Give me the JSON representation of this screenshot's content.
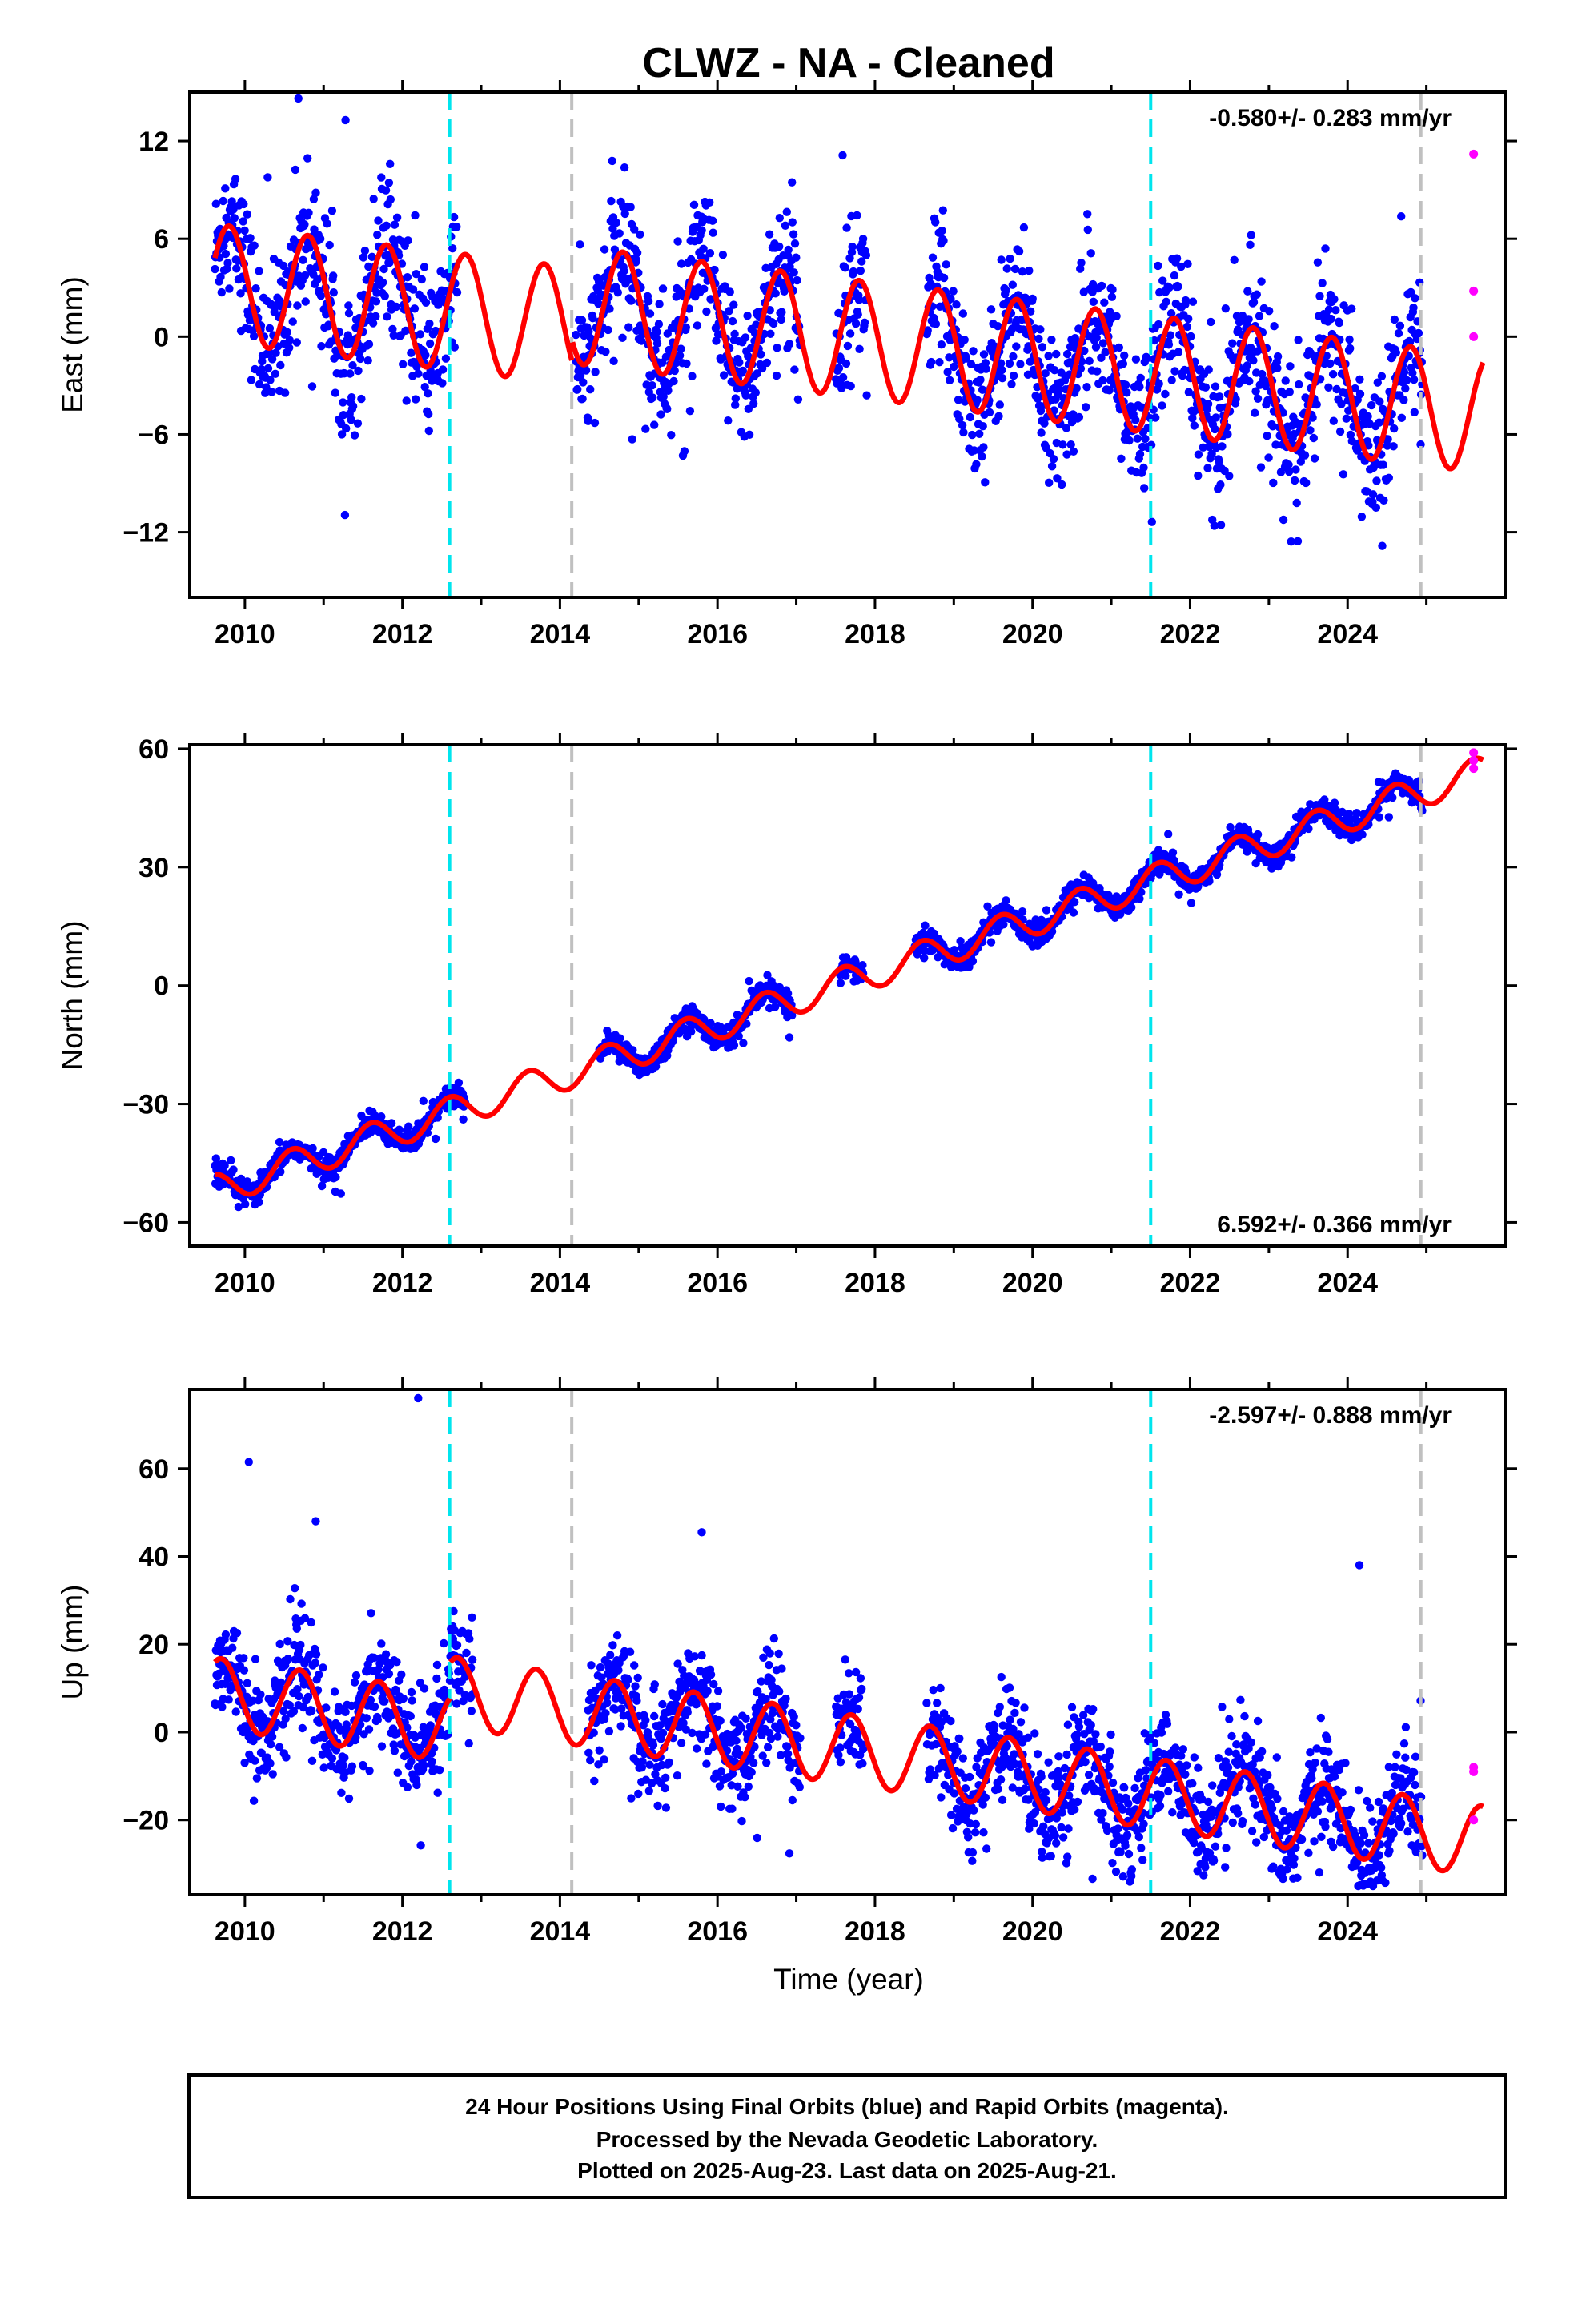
{
  "title": "CLWZ  - NA - Cleaned",
  "xlabel": "Time (year)",
  "footer": {
    "line1": "24 Hour Positions Using Final Orbits (blue) and Rapid Orbits (magenta).",
    "line2": "Processed by the Nevada Geodetic Laboratory.",
    "line3": "Plotted on 2025-Aug-23. Last data on 2025-Aug-21."
  },
  "colors": {
    "final_orbits": "#0000ff",
    "rapid_orbits": "#ff00ff",
    "model_fit": "#ff0000",
    "antenna_change": "#00e5ee",
    "equipment_change": "#c0c0c0"
  },
  "chart_data": [
    {
      "type": "scatter",
      "component": "East",
      "ylabel": "East (mm)",
      "xlim": [
        2009.3,
        2026.0
      ],
      "ylim": [
        -16,
        15
      ],
      "yticks": [
        -12,
        -6,
        0,
        6,
        12
      ],
      "xticks": [
        2010,
        2012,
        2014,
        2016,
        2018,
        2020,
        2022,
        2024
      ],
      "rate_label": "-0.580+/- 0.283 mm/yr",
      "rate_position": "top-right",
      "rate_mm_yr": -0.58,
      "antenna_change_years": [
        2012.6,
        2021.5
      ],
      "equipment_change_years": [
        2014.15,
        2024.93
      ],
      "data_gaps": [
        [
          2012.7,
          2014.2
        ],
        [
          2017.05,
          2017.5
        ],
        [
          2017.9,
          2018.65
        ]
      ],
      "model": {
        "offset": 3.3,
        "amplitude": 3.6,
        "phase_year": 2009.8,
        "trend": -0.58,
        "steps": [
          [
            2014.15,
            1.3
          ]
        ]
      },
      "scatter_sigma": 2.2,
      "rapid_orbit_points": [
        [
          2025.6,
          11.2
        ],
        [
          2025.6,
          2.8
        ],
        [
          2025.6,
          0.0
        ]
      ]
    },
    {
      "type": "scatter",
      "component": "North",
      "ylabel": "North (mm)",
      "xlim": [
        2009.3,
        2026.0
      ],
      "ylim": [
        -66,
        61
      ],
      "yticks": [
        -60,
        -30,
        0,
        30,
        60
      ],
      "xticks": [
        2010,
        2012,
        2014,
        2016,
        2018,
        2020,
        2022,
        2024
      ],
      "rate_label": "6.592+/- 0.366 mm/yr",
      "rate_position": "bottom-right",
      "rate_mm_yr": 6.592,
      "antenna_change_years": [
        2012.6,
        2021.5
      ],
      "equipment_change_years": [
        2014.15,
        2024.93
      ],
      "data_gaps": [
        [
          2012.8,
          2014.5
        ],
        [
          2016.95,
          2017.55
        ],
        [
          2017.85,
          2018.5
        ]
      ],
      "model": {
        "offset": -52,
        "amplitude": 4.0,
        "phase_year": 2009.6,
        "trend": 6.592,
        "steps": []
      },
      "scatter_sigma": 1.5,
      "rapid_orbit_points": [
        [
          2025.6,
          59.0
        ],
        [
          2025.6,
          57.0
        ],
        [
          2025.6,
          55.0
        ]
      ]
    },
    {
      "type": "scatter",
      "component": "Up",
      "ylabel": "Up (mm)",
      "xlabel": "Time (year)",
      "xlim": [
        2009.3,
        2026.0
      ],
      "ylim": [
        -37,
        78
      ],
      "yticks": [
        -20,
        0,
        20,
        40,
        60
      ],
      "xticks": [
        2010,
        2012,
        2014,
        2016,
        2018,
        2020,
        2022,
        2024
      ],
      "rate_label": "-2.597+/- 0.888 mm/yr",
      "rate_position": "top-right",
      "rate_mm_yr": -2.597,
      "antenna_change_years": [
        2012.6,
        2021.5
      ],
      "equipment_change_years": [
        2014.15,
        2024.93
      ],
      "data_gaps": [
        [
          2012.9,
          2014.35
        ],
        [
          2017.05,
          2017.5
        ],
        [
          2017.85,
          2018.65
        ]
      ],
      "model": {
        "offset": 9.0,
        "amplitude": 8.0,
        "phase_year": 2009.7,
        "trend": -2.597,
        "steps": [
          [
            2012.6,
            8.0
          ]
        ]
      },
      "scatter_sigma": 6.0,
      "rapid_orbit_points": [
        [
          2025.6,
          -8.0
        ],
        [
          2025.6,
          -9.0
        ],
        [
          2025.6,
          -20.0
        ]
      ],
      "outliers": [
        [
          2010.05,
          61.5
        ],
        [
          2010.9,
          48.0
        ],
        [
          2012.2,
          76.0
        ],
        [
          2015.8,
          45.5
        ],
        [
          2024.15,
          38.0
        ]
      ]
    }
  ]
}
